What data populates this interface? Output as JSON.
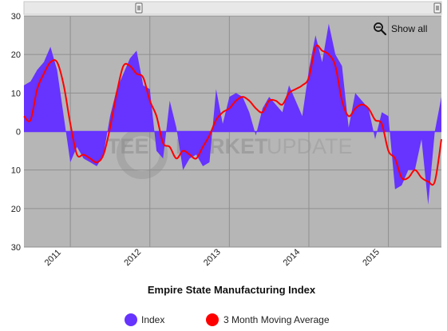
{
  "chart_data": {
    "type": "area",
    "xlabel": "Empire State Manufacturing Index",
    "ylabel": "",
    "ylim": [
      -30,
      30
    ],
    "y_ticks": [
      30,
      20,
      10,
      0,
      -10,
      -20,
      -30
    ],
    "y_tick_labels": [
      "30",
      "20",
      "10",
      "0",
      "10",
      "20",
      "30"
    ],
    "x_tick_labels": [
      "2011",
      "2012",
      "2013",
      "2014",
      "2015"
    ],
    "grid": true,
    "legend_position": "bottom",
    "x_start": "2010-06",
    "series": [
      {
        "name": "Index",
        "style": "area",
        "color": "#6633ff",
        "values": [
          12,
          13,
          16,
          18,
          22,
          16,
          4,
          -8,
          -4,
          -7,
          -8,
          -9,
          -6,
          4,
          11,
          15,
          19,
          21,
          12,
          11,
          -5,
          -7,
          8,
          1,
          -10,
          -7,
          -6,
          -9,
          -8,
          11,
          2,
          9,
          10,
          9,
          5,
          -1,
          6,
          9,
          7,
          5,
          12,
          8,
          4,
          16,
          25,
          18,
          28,
          20,
          17,
          1,
          10,
          8,
          6,
          -2,
          5,
          4,
          -15,
          -14,
          -10,
          -10,
          -2,
          -19,
          0,
          9
        ]
      },
      {
        "name": "3 Month Moving Average",
        "style": "line",
        "color": "#ff0000",
        "values": [
          4,
          3,
          11,
          15,
          18,
          18,
          12,
          2,
          -6,
          -6,
          -7,
          -8,
          -6,
          1,
          10,
          17,
          17,
          15,
          14,
          8,
          4,
          -3,
          -4,
          -7,
          -5,
          -6,
          -7,
          -4,
          -1,
          3,
          5,
          6,
          8,
          9,
          8,
          6,
          5,
          8,
          8,
          7,
          10,
          11,
          12,
          14,
          22,
          21,
          20,
          17,
          8,
          4,
          6,
          7,
          6,
          3,
          2,
          -5,
          -7,
          -12,
          -12,
          -10,
          -12,
          -13,
          -13,
          -2
        ]
      }
    ],
    "watermark": "STEEL MARKET UPDATE",
    "colors": {
      "plot_background": "#b6b6b6",
      "index_fill": "#6633ff",
      "moving_average_line": "#ff0000",
      "grid": "#8f8f8f",
      "navigator_bar": "#e8e8e8"
    }
  },
  "controls": {
    "show_all_label": "Show all",
    "show_all_icon": "zoom-out-magnifier-icon",
    "navigator_handle_icon": "drag-handle-icon"
  }
}
